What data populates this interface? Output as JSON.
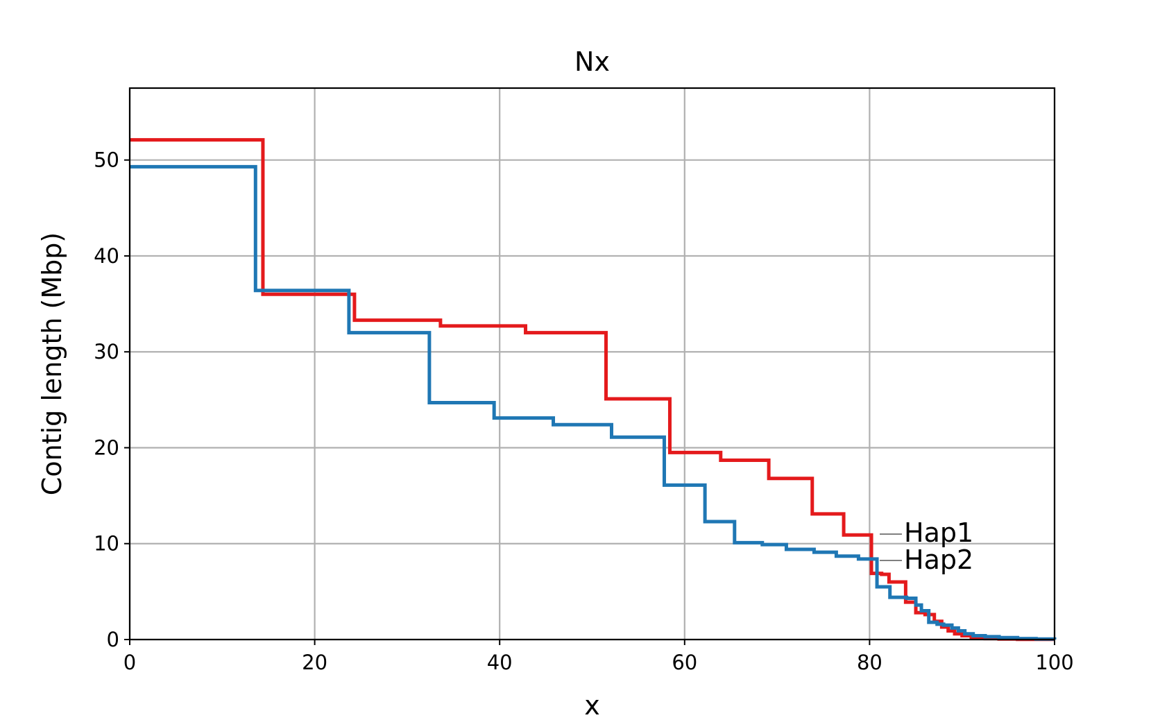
{
  "chart_data": {
    "type": "line",
    "title": "Nx",
    "xlabel": "x",
    "ylabel": "Contig length (Mbp)",
    "xlim": [
      0,
      100
    ],
    "ylim": [
      0,
      57.5
    ],
    "xticks": [
      0,
      20,
      40,
      60,
      80,
      100
    ],
    "yticks": [
      0,
      10,
      20,
      30,
      40,
      50
    ],
    "grid": true,
    "series": [
      {
        "name": "Hap1",
        "color": "#e41a1c",
        "step": true,
        "x": [
          0,
          14.4,
          24.3,
          33.6,
          42.8,
          51.5,
          58.4,
          63.9,
          69.1,
          73.8,
          77.2,
          80.2,
          81.3,
          82.1,
          83.9,
          85.0,
          86.0,
          87.0,
          87.8,
          88.5,
          89.2,
          90.0,
          91.0,
          92.5,
          94.0,
          96.0,
          100
        ],
        "y": [
          52.1,
          36.0,
          33.3,
          32.7,
          32.0,
          25.1,
          19.5,
          18.7,
          16.8,
          13.1,
          10.9,
          6.9,
          6.8,
          6.0,
          3.9,
          2.8,
          2.6,
          1.9,
          1.3,
          0.9,
          0.6,
          0.4,
          0.2,
          0.1,
          0.05,
          0.02,
          0
        ]
      },
      {
        "name": "Hap2",
        "color": "#1f77b4",
        "step": true,
        "x": [
          0,
          13.6,
          23.7,
          32.4,
          39.4,
          45.8,
          52.1,
          57.8,
          62.2,
          65.4,
          68.4,
          71.0,
          74.0,
          76.4,
          78.8,
          80.8,
          82.2,
          84.0,
          85.0,
          85.6,
          86.4,
          87.3,
          88.0,
          88.9,
          89.6,
          90.3,
          91.2,
          92.5,
          94.0,
          96.0,
          98.0,
          100
        ],
        "y": [
          49.3,
          36.4,
          32.0,
          24.7,
          23.1,
          22.4,
          21.1,
          16.1,
          12.3,
          10.1,
          9.9,
          9.4,
          9.1,
          8.7,
          8.4,
          5.5,
          4.4,
          4.3,
          3.6,
          3.0,
          1.8,
          1.6,
          1.5,
          1.2,
          0.9,
          0.6,
          0.4,
          0.3,
          0.2,
          0.1,
          0.05,
          0
        ]
      }
    ],
    "labels": [
      "Hap1",
      "Hap2"
    ]
  }
}
